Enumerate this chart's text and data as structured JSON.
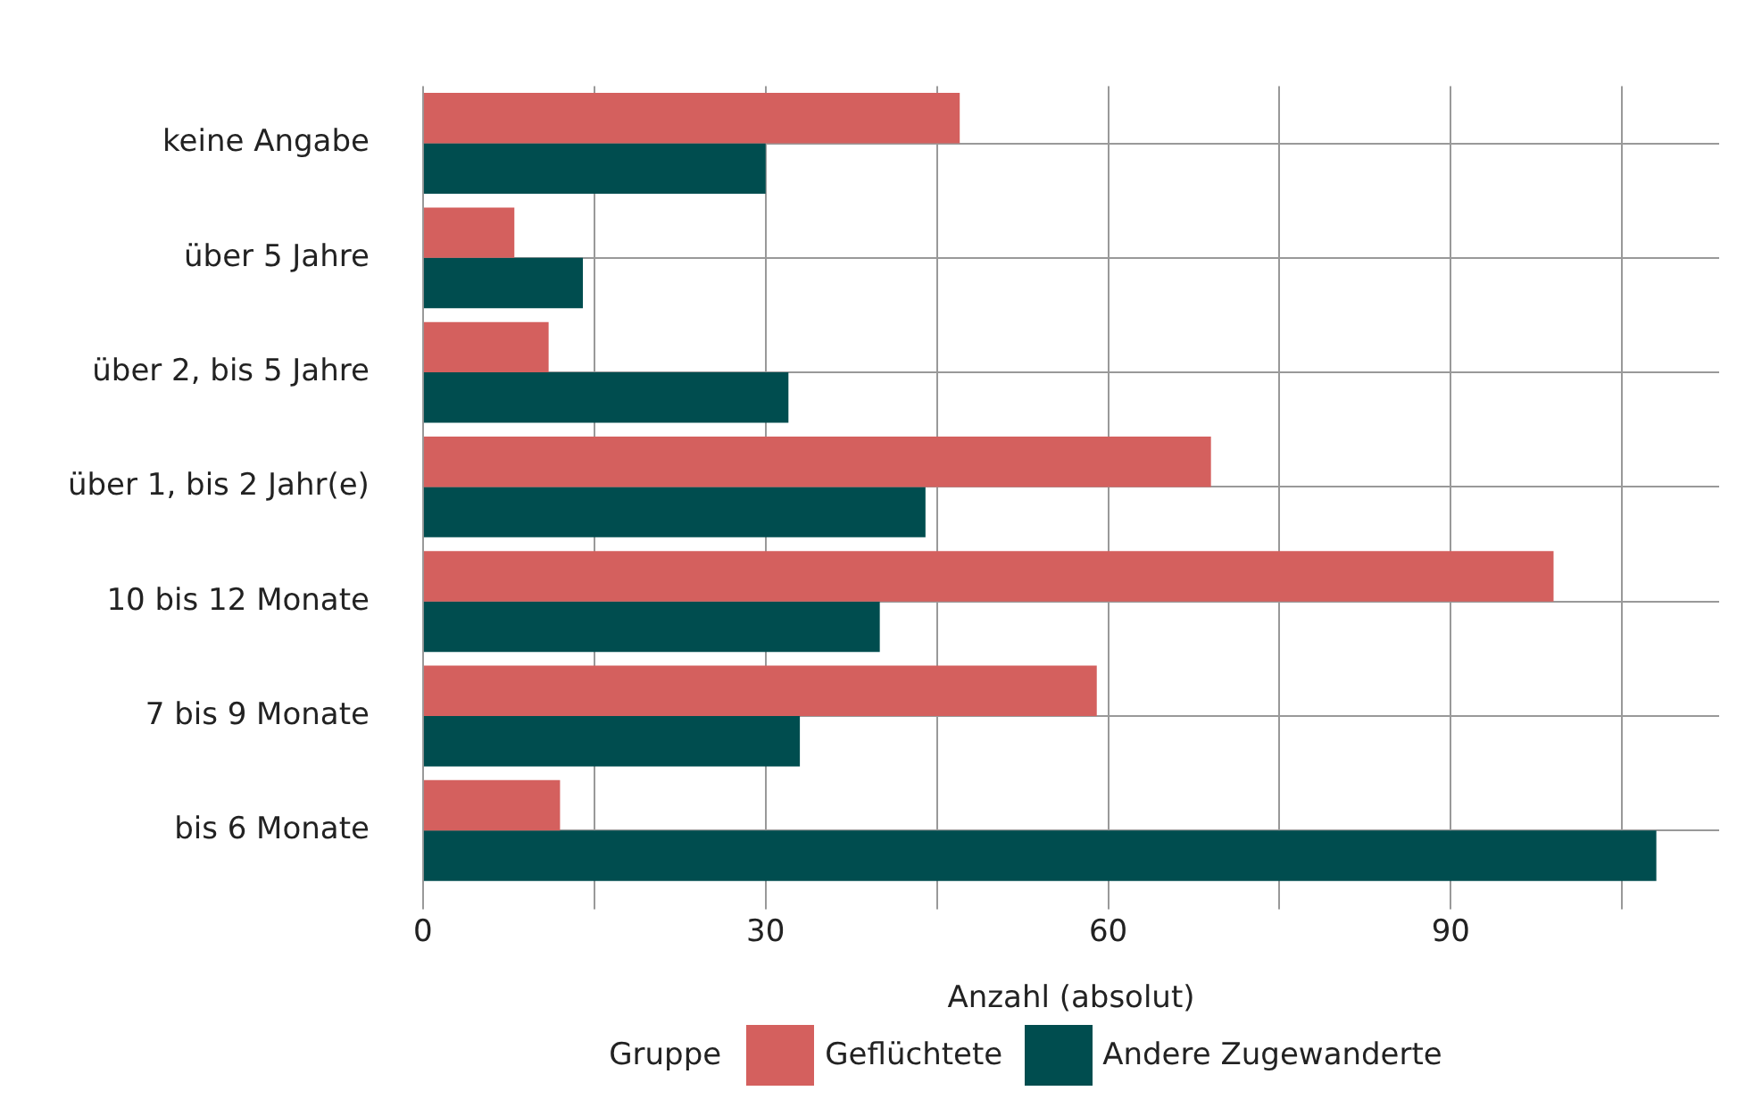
{
  "chart_data": {
    "type": "bar",
    "orientation": "horizontal",
    "xlabel": "Anzahl (absolut)",
    "legend_title": "Gruppe",
    "legend": "bottom",
    "grid": true,
    "categories": [
      "keine Angabe",
      "über 5 Jahre",
      "über 2, bis 5 Jahre",
      "über 1, bis 2 Jahr(e)",
      "10 bis 12 Monate",
      "7 bis 9 Monate",
      "bis 6 Monate"
    ],
    "series": [
      {
        "name": "Geflüchtete",
        "color": "#d4605e",
        "values": [
          47,
          8,
          11,
          69,
          99,
          59,
          12
        ]
      },
      {
        "name": "Andere Zugewanderte",
        "color": "#004d4f",
        "values": [
          30,
          14,
          32,
          44,
          40,
          33,
          108
        ]
      }
    ],
    "xlim": [
      0,
      113.5
    ],
    "xticks": [
      0,
      {
        "value": 15,
        "label": null
      },
      30,
      {
        "value": 45,
        "label": null
      },
      60,
      {
        "value": 75,
        "label": null
      },
      90,
      {
        "value": 105,
        "label": null
      }
    ]
  }
}
